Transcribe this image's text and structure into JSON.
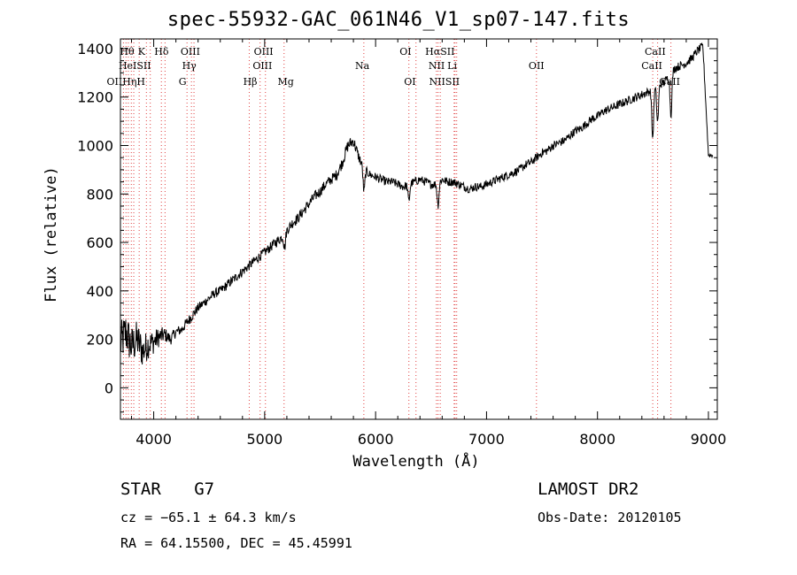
{
  "chart_data": {
    "type": "line",
    "title": "spec-55932-GAC_061N46_V1_sp07-147.fits",
    "xlabel": "Wavelength (Å)",
    "ylabel": "Flux (relative)",
    "xlim": [
      3700,
      9080
    ],
    "ylim": [
      -130,
      1440
    ],
    "xticks": [
      4000,
      5000,
      6000,
      7000,
      8000,
      9000
    ],
    "yticks": [
      0,
      200,
      400,
      600,
      800,
      1000,
      1200,
      1400
    ],
    "grid": false,
    "series": [
      {
        "x": [
          3700,
          3750,
          3800,
          3850,
          3900,
          3950,
          4000,
          4050,
          4100,
          4150,
          4200,
          4250,
          4300,
          4350,
          4400,
          4450,
          4500,
          4550,
          4600,
          4650,
          4700,
          4750,
          4800,
          4850,
          4900,
          4950,
          5000,
          5050,
          5100,
          5150,
          5200,
          5250,
          5300,
          5350,
          5400,
          5450,
          5500,
          5550,
          5600,
          5650,
          5700,
          5750,
          5800,
          5850,
          5900,
          5950,
          6000,
          6050,
          6100,
          6150,
          6200,
          6250,
          6300,
          6350,
          6400,
          6450,
          6500,
          6550,
          6600,
          6650,
          6700,
          6750,
          6800,
          6850,
          6900,
          6950,
          7000,
          7050,
          7100,
          7150,
          7200,
          7250,
          7300,
          7350,
          7400,
          7450,
          7500,
          7550,
          7600,
          7650,
          7700,
          7750,
          7800,
          7850,
          7900,
          7950,
          8000,
          8050,
          8100,
          8150,
          8200,
          8250,
          8300,
          8350,
          8400,
          8450,
          8500,
          8550,
          8600,
          8650,
          8700,
          8750,
          8800,
          8850,
          8900,
          8950,
          9000
        ],
        "values": [
          180,
          230,
          170,
          200,
          150,
          180,
          190,
          210,
          220,
          200,
          230,
          240,
          270,
          300,
          330,
          350,
          370,
          390,
          400,
          420,
          440,
          460,
          480,
          500,
          520,
          540,
          560,
          580,
          600,
          620,
          650,
          680,
          700,
          730,
          760,
          790,
          810,
          840,
          860,
          880,
          930,
          1000,
          1020,
          950,
          900,
          880,
          870,
          860,
          850,
          850,
          840,
          830,
          840,
          850,
          860,
          850,
          840,
          840,
          860,
          850,
          850,
          840,
          830,
          820,
          830,
          830,
          840,
          850,
          860,
          870,
          880,
          890,
          900,
          920,
          930,
          950,
          970,
          980,
          1000,
          1010,
          1020,
          1040,
          1060,
          1070,
          1090,
          1110,
          1120,
          1140,
          1150,
          1160,
          1170,
          1180,
          1190,
          1200,
          1210,
          1220,
          1230,
          1250,
          1260,
          1290,
          1320,
          1330,
          1340,
          1360,
          1390,
          1410,
          960
        ],
        "noise": [
          90,
          90,
          85,
          80,
          70,
          60,
          50,
          40,
          30,
          25,
          22,
          22,
          22,
          22,
          20,
          20,
          20,
          20,
          20,
          20,
          20,
          20,
          20,
          20,
          20,
          20,
          20,
          20,
          22,
          22,
          22,
          22,
          22,
          22,
          22,
          22,
          22,
          22,
          22,
          22,
          24,
          26,
          26,
          22,
          20,
          18,
          18,
          18,
          18,
          18,
          18,
          18,
          18,
          18,
          18,
          18,
          18,
          18,
          18,
          18,
          18,
          18,
          18,
          18,
          18,
          18,
          18,
          18,
          18,
          18,
          18,
          18,
          18,
          18,
          18,
          18,
          18,
          18,
          18,
          18,
          18,
          18,
          18,
          18,
          18,
          18,
          18,
          18,
          18,
          18,
          18,
          18,
          18,
          18,
          18,
          18,
          18,
          18,
          18,
          18,
          18,
          18,
          18,
          18,
          18,
          18,
          10
        ],
        "dips": [
          {
            "x": 5180,
            "depth": 60
          },
          {
            "x": 5895,
            "depth": 95
          },
          {
            "x": 6300,
            "depth": 70
          },
          {
            "x": 6563,
            "depth": 90
          },
          {
            "x": 8498,
            "depth": 200
          },
          {
            "x": 8542,
            "depth": 150
          },
          {
            "x": 8662,
            "depth": 170
          }
        ]
      }
    ],
    "lines": [
      {
        "x": 3727,
        "label": "OII"
      },
      {
        "x": 3750,
        "label": "Hθ"
      },
      {
        "x": 3771,
        "label": "Hη"
      },
      {
        "x": 3798,
        "label": "Hθ"
      },
      {
        "x": 3820,
        "label": "HeI"
      },
      {
        "x": 3869,
        "label": "SII"
      },
      {
        "x": 3934,
        "label": "K"
      },
      {
        "x": 3969,
        "label": "H"
      },
      {
        "x": 4069,
        "label": "SII"
      },
      {
        "x": 4102,
        "label": "Hδ"
      },
      {
        "x": 4300,
        "label": "G"
      },
      {
        "x": 4340,
        "label": "Hγ"
      },
      {
        "x": 4363,
        "label": "OIII"
      },
      {
        "x": 4861,
        "label": "Hβ"
      },
      {
        "x": 4959,
        "label": "OIII"
      },
      {
        "x": 5007,
        "label": "OIII"
      },
      {
        "x": 5175,
        "label": "Mg"
      },
      {
        "x": 5894,
        "label": "Na"
      },
      {
        "x": 6300,
        "label": "OI"
      },
      {
        "x": 6364,
        "label": "OI"
      },
      {
        "x": 6548,
        "label": "NII"
      },
      {
        "x": 6563,
        "label": "Hα"
      },
      {
        "x": 6583,
        "label": "NII"
      },
      {
        "x": 6708,
        "label": "Li"
      },
      {
        "x": 6716,
        "label": "SII"
      },
      {
        "x": 6731,
        "label": "SII"
      },
      {
        "x": 7450,
        "label": "OII"
      },
      {
        "x": 8498,
        "label": "CaII"
      },
      {
        "x": 8542,
        "label": "CaII"
      },
      {
        "x": 8662,
        "label": "CaII"
      }
    ],
    "line_labels": [
      {
        "x": 3760,
        "row": 0,
        "text": "Hθ"
      },
      {
        "x": 3890,
        "row": 0,
        "text": "K"
      },
      {
        "x": 4070,
        "row": 0,
        "text": "Hδ"
      },
      {
        "x": 4330,
        "row": 0,
        "text": "OIII"
      },
      {
        "x": 4990,
        "row": 0,
        "text": "OIII"
      },
      {
        "x": 6270,
        "row": 0,
        "text": "OI"
      },
      {
        "x": 6580,
        "row": 0,
        "text": "HαSII"
      },
      {
        "x": 8520,
        "row": 0,
        "text": "CaII"
      },
      {
        "x": 3830,
        "row": 1,
        "text": "HeISII"
      },
      {
        "x": 4320,
        "row": 1,
        "text": "Hγ"
      },
      {
        "x": 4980,
        "row": 1,
        "text": "OIII"
      },
      {
        "x": 5880,
        "row": 1,
        "text": "Na"
      },
      {
        "x": 6550,
        "row": 1,
        "text": "NII"
      },
      {
        "x": 6690,
        "row": 1,
        "text": "Li"
      },
      {
        "x": 7450,
        "row": 1,
        "text": "OII"
      },
      {
        "x": 8490,
        "row": 1,
        "text": "CaII"
      },
      {
        "x": 3750,
        "row": 2,
        "text": "OIIHηH"
      },
      {
        "x": 4260,
        "row": 2,
        "text": "G"
      },
      {
        "x": 4870,
        "row": 2,
        "text": "Hβ"
      },
      {
        "x": 5190,
        "row": 2,
        "text": "Mg"
      },
      {
        "x": 6310,
        "row": 2,
        "text": "OI"
      },
      {
        "x": 6620,
        "row": 2,
        "text": "NIISII"
      },
      {
        "x": 8650,
        "row": 2,
        "text": "CaII"
      }
    ]
  },
  "info": {
    "object": "STAR",
    "subclass": "G7",
    "survey": "LAMOST DR2",
    "cz": "cz = −65.1 ± 64.3 km/s",
    "obsdate": "Obs-Date: 20120105",
    "radec": "RA =  64.15500, DEC =  45.45991"
  }
}
